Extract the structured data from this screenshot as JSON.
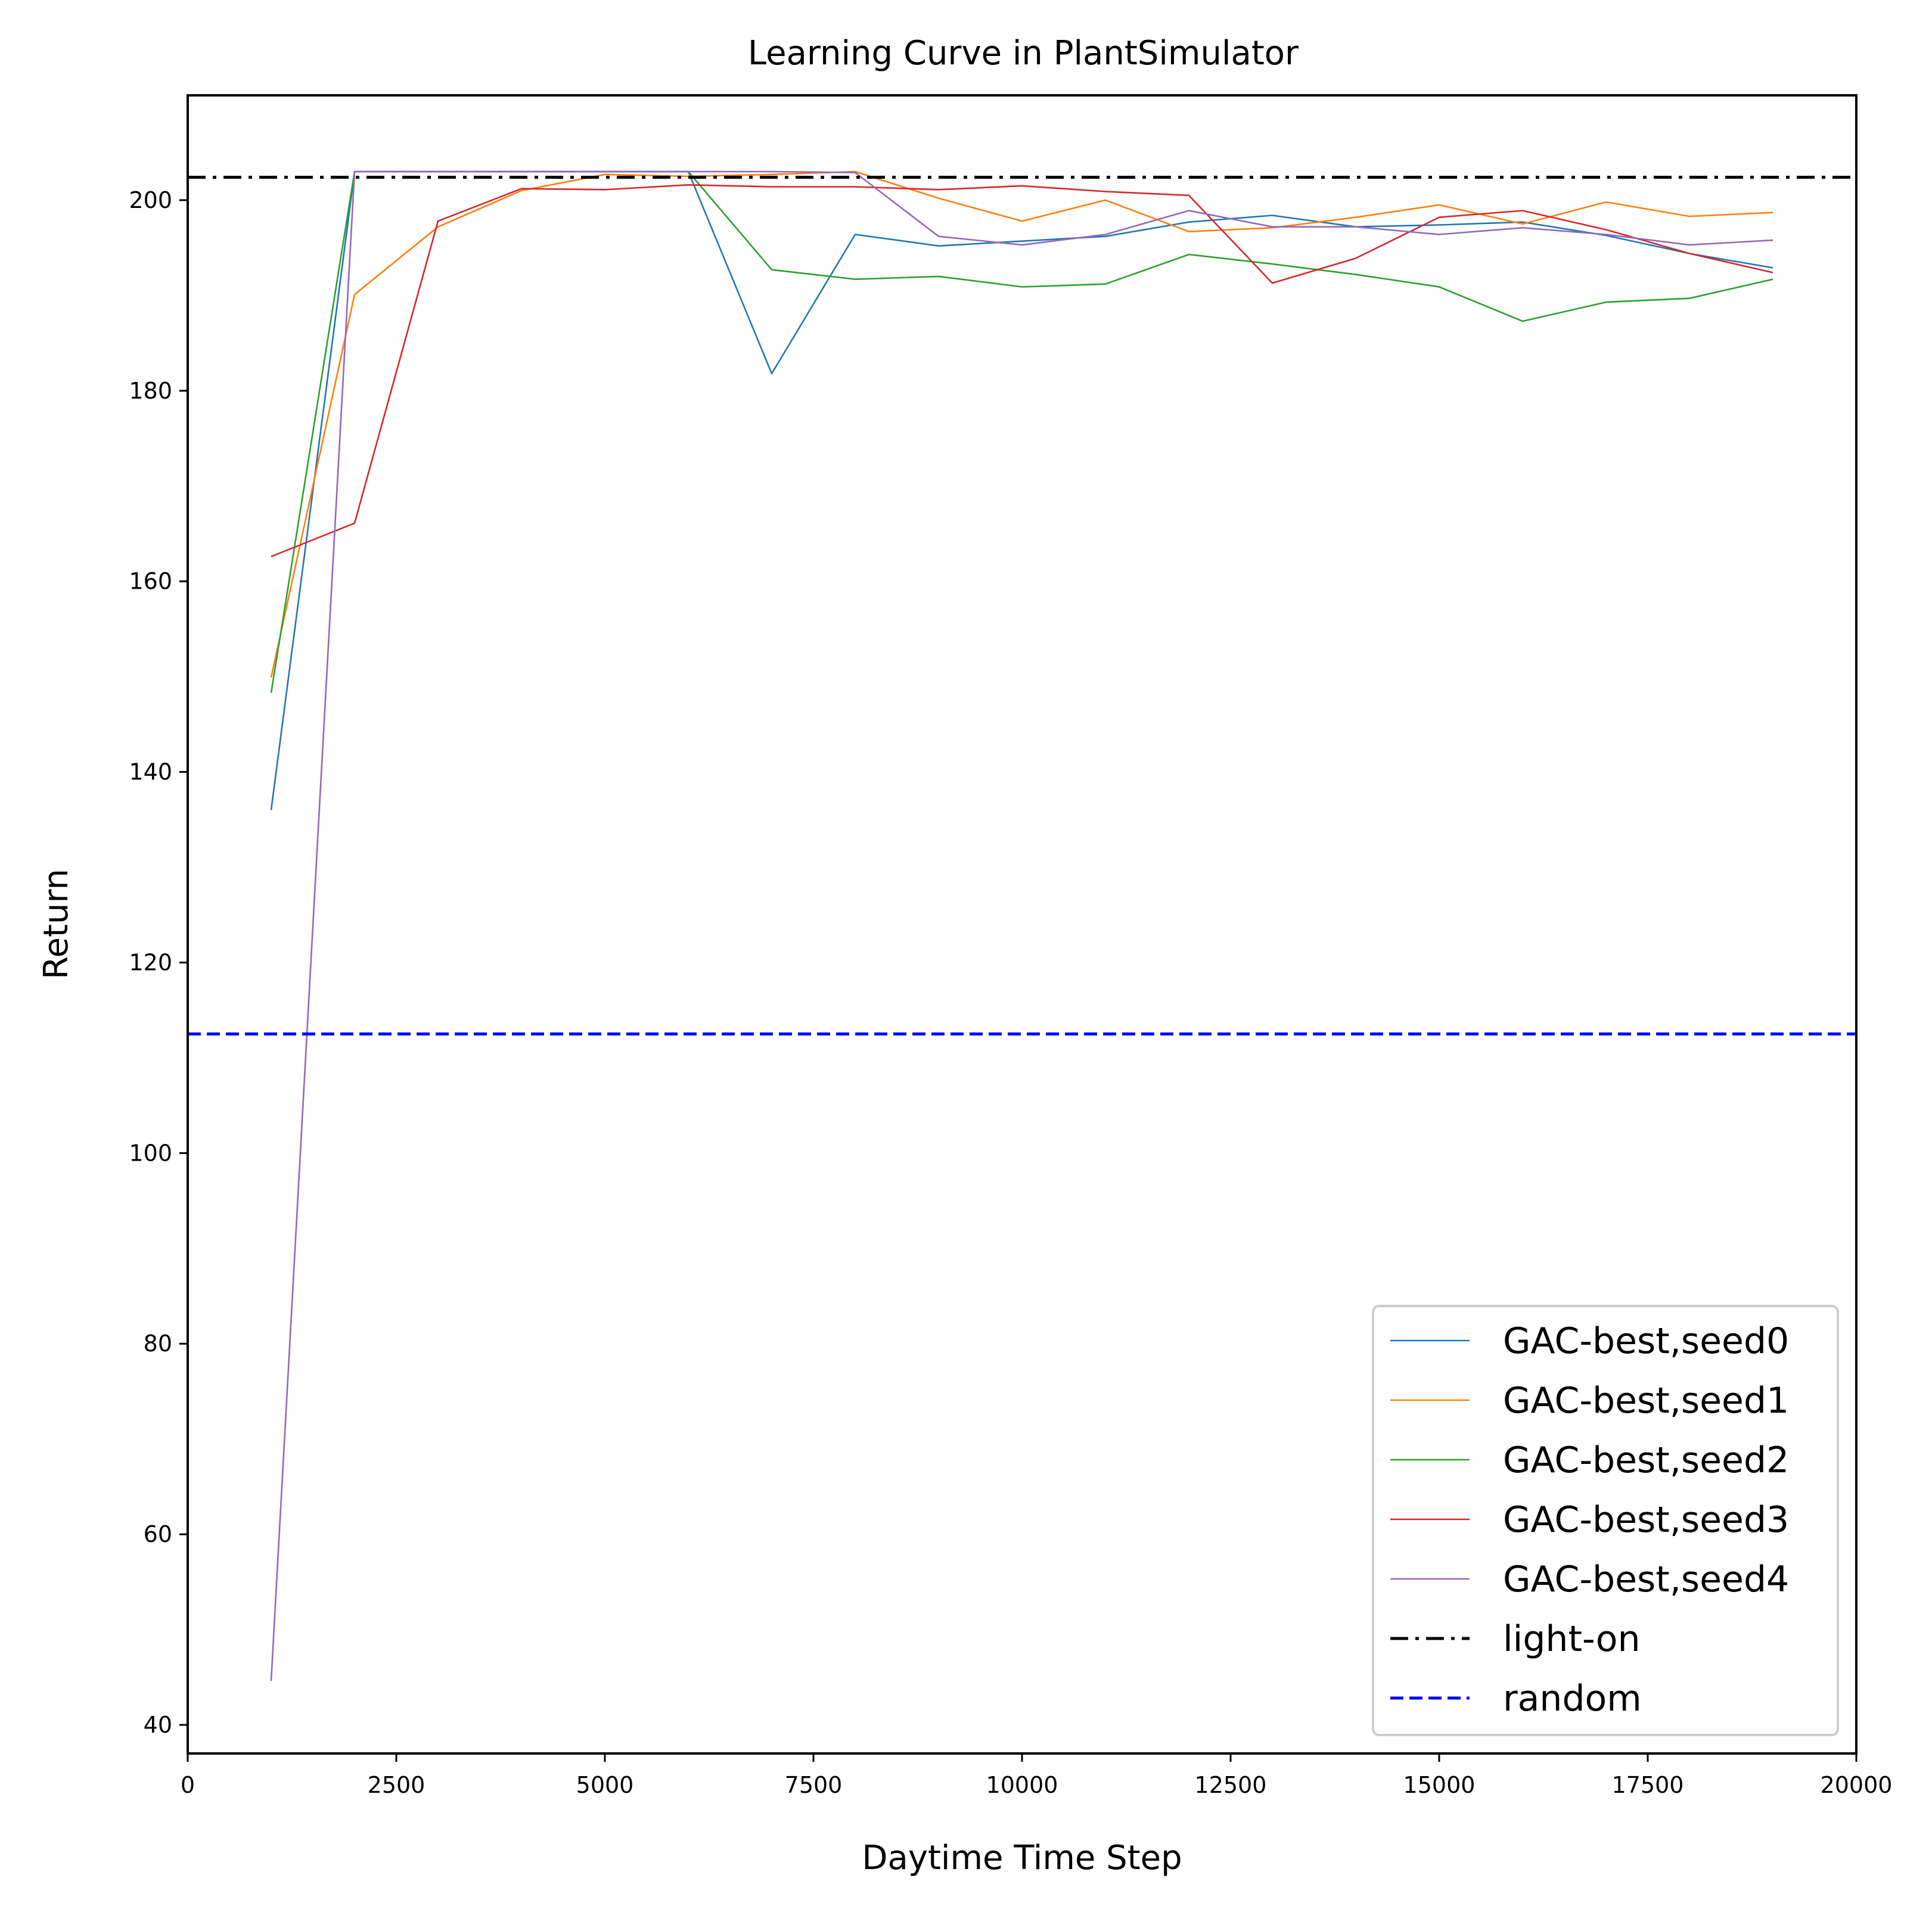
{
  "chart_data": {
    "type": "line",
    "title": "Learning Curve in PlantSimulator",
    "xlabel": "Daytime Time Step",
    "ylabel": "Return",
    "xlim": [
      0,
      20000
    ],
    "ylim": [
      37,
      211
    ],
    "xticks": [
      0,
      2500,
      5000,
      7500,
      10000,
      12500,
      15000,
      17500,
      20000
    ],
    "yticks": [
      40,
      60,
      80,
      100,
      120,
      140,
      160,
      180,
      200
    ],
    "grid": false,
    "legend_position": "lower-right",
    "x": [
      1000,
      2000,
      3000,
      4000,
      5000,
      6000,
      7000,
      8000,
      9000,
      10000,
      11000,
      12000,
      13000,
      14000,
      15000,
      16000,
      17000,
      18000,
      19000
    ],
    "series": [
      {
        "name": "GAC-best,seed0",
        "color": "#1f77b4",
        "style": "solid",
        "values": [
          136,
          203,
          203,
          203,
          203,
          203,
          181.8,
          196.4,
          195.2,
          195.7,
          196.2,
          197.7,
          198.4,
          197.2,
          197.4,
          197.7,
          196.3,
          194.4,
          192.9
        ]
      },
      {
        "name": "GAC-best,seed1",
        "color": "#ff7f0e",
        "style": "solid",
        "values": [
          149.9,
          190.1,
          197.2,
          201.0,
          202.7,
          202.5,
          202.7,
          203.0,
          200.2,
          197.8,
          200.0,
          196.7,
          197.1,
          198.2,
          199.5,
          197.5,
          199.8,
          198.3,
          198.7
        ]
      },
      {
        "name": "GAC-best,seed2",
        "color": "#2ca02c",
        "style": "solid",
        "values": [
          148.3,
          203,
          203,
          203,
          203,
          203,
          192.7,
          191.7,
          192.0,
          190.9,
          191.2,
          194.3,
          193.3,
          192.2,
          190.9,
          187.3,
          189.3,
          189.7,
          191.7
        ]
      },
      {
        "name": "GAC-best,seed3",
        "color": "#d62728",
        "style": "solid",
        "values": [
          162.6,
          166.1,
          197.8,
          201.2,
          201.1,
          201.6,
          201.4,
          201.4,
          201.1,
          201.5,
          200.9,
          200.5,
          191.3,
          193.9,
          198.2,
          198.9,
          196.9,
          194.4,
          192.4
        ]
      },
      {
        "name": "GAC-best,seed4",
        "color": "#9467bd",
        "style": "solid",
        "values": [
          44.6,
          203,
          203,
          203,
          203,
          203,
          203,
          202.9,
          196.2,
          195.3,
          196.4,
          198.9,
          197.2,
          197.2,
          196.4,
          197.1,
          196.4,
          195.3,
          195.8
        ]
      }
    ],
    "reference_lines": [
      {
        "name": "light-on",
        "color": "#000000",
        "style": "dashdot",
        "y": 202.4
      },
      {
        "name": "random",
        "color": "#0000ff",
        "style": "dashed",
        "y": 112.5
      }
    ]
  }
}
